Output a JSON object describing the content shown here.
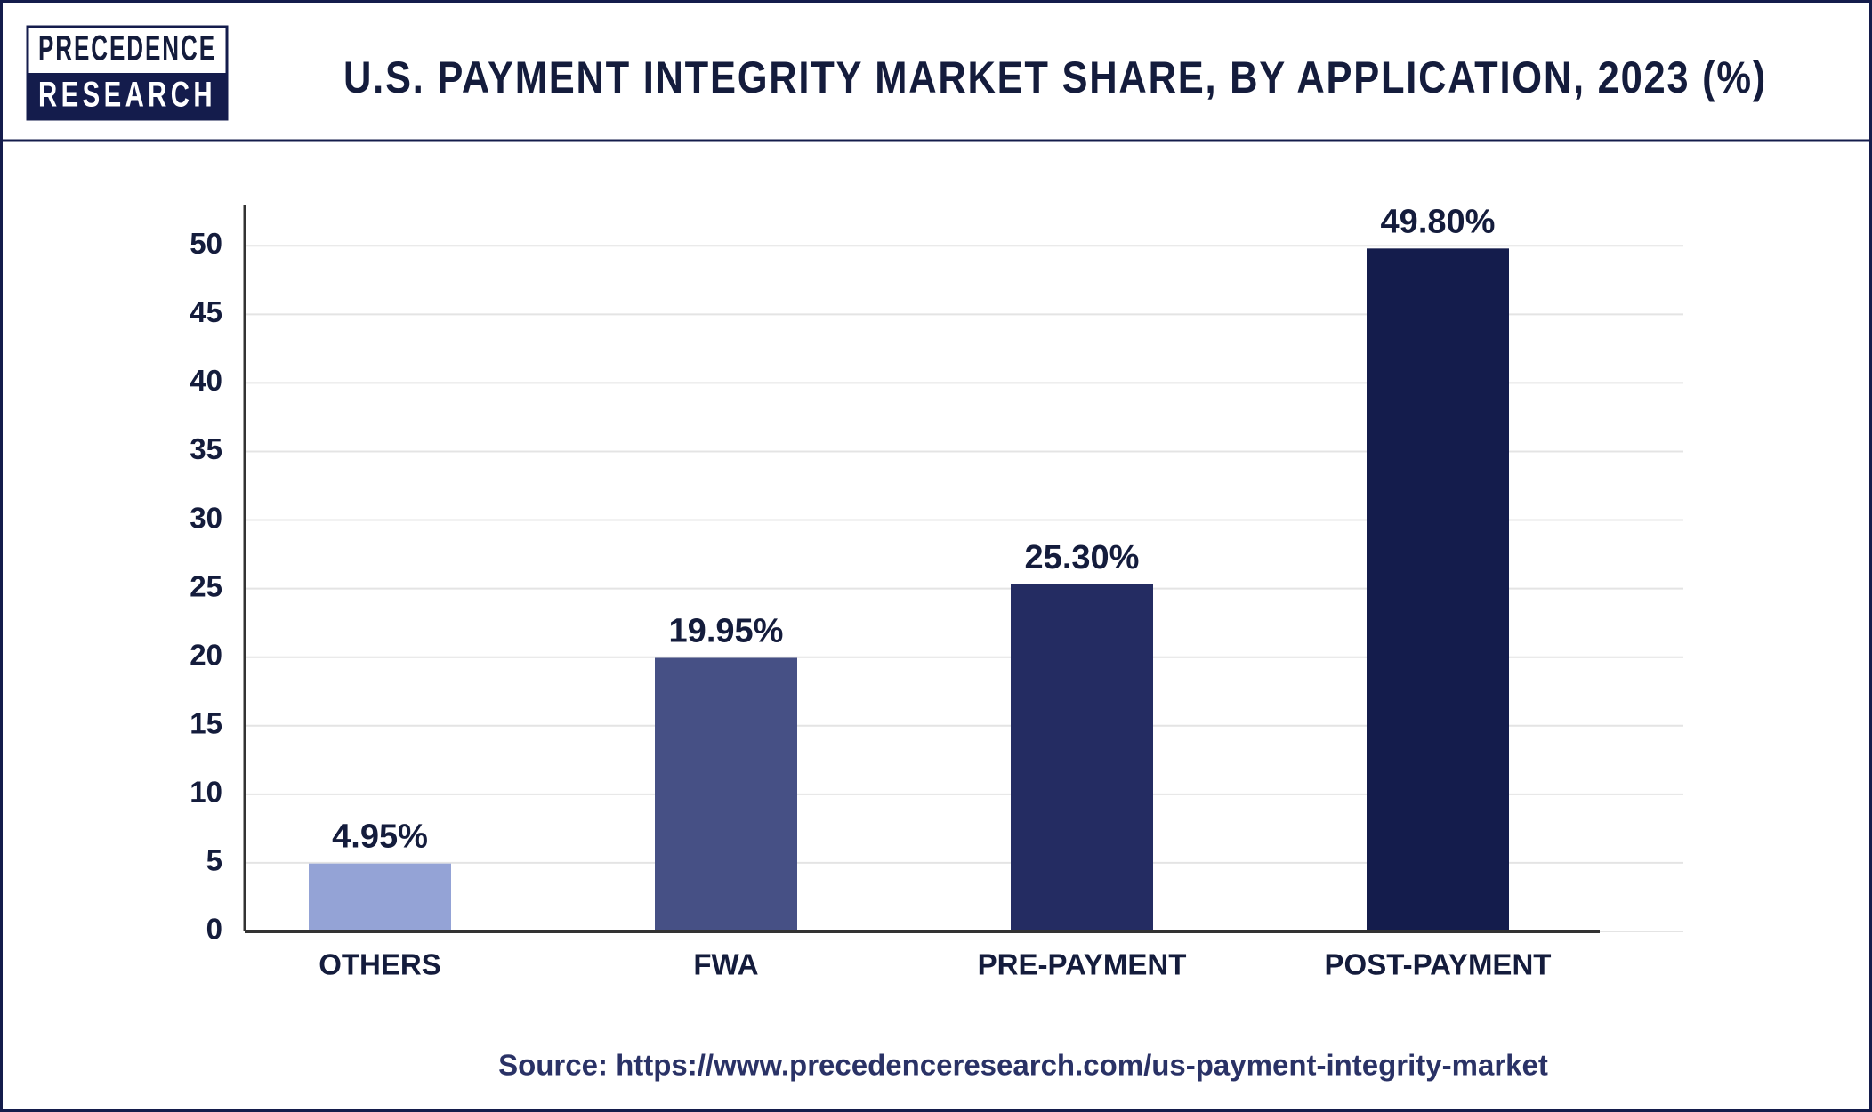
{
  "logo": {
    "line1": "PRECEDENCE",
    "line2": "RESEARCH"
  },
  "chart_data": {
    "type": "bar",
    "title": "U.S. PAYMENT INTEGRITY MARKET SHARE, BY APPLICATION, 2023 (%)",
    "categories": [
      "OTHERS",
      "FWA",
      "PRE-PAYMENT",
      "POST-PAYMENT"
    ],
    "values": [
      4.95,
      19.95,
      25.3,
      49.8
    ],
    "value_labels": [
      "4.95%",
      "19.95%",
      "25.30%",
      "49.80%"
    ],
    "colors": [
      "#94a3d6",
      "#465085",
      "#242c62",
      "#141c4c"
    ],
    "ylim": [
      0,
      53
    ],
    "yticks": [
      0,
      5,
      10,
      15,
      20,
      25,
      30,
      35,
      40,
      45,
      50
    ],
    "grid": true,
    "source": "Source: https://www.precedenceresearch.com/us-payment-integrity-market"
  }
}
